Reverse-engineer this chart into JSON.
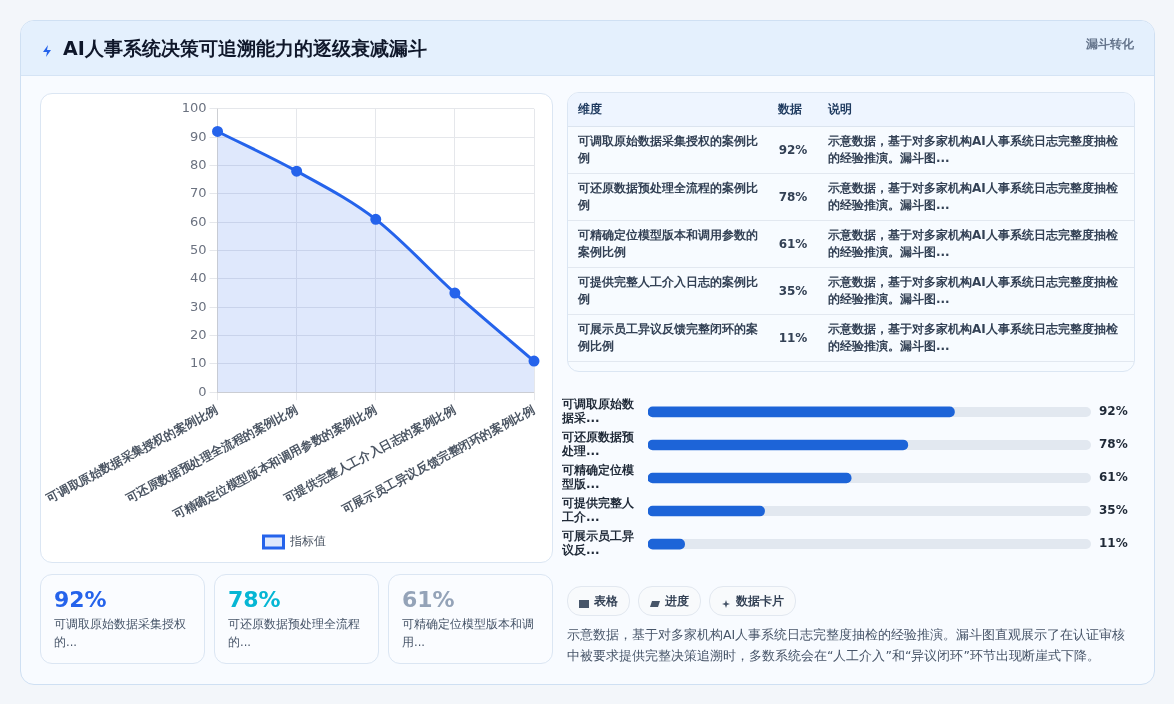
{
  "chart_data": [
    {
      "type": "area",
      "title": "AI人事系统决策可追溯能力的逐级衰减漏斗",
      "categories": [
        "可调取原始数据采集授权的案例比例",
        "可还原数据预处理全流程的案例比例",
        "可精确定位模型版本和调用参数的案例比例",
        "可提供完整人工介入日志的案例比例",
        "可展示员工异议反馈完整闭环的案例比例"
      ],
      "series": [
        {
          "name": "指标值",
          "color": "#2563eb",
          "values": [
            92,
            78,
            61,
            35,
            11
          ]
        }
      ],
      "ylim": [
        0,
        100
      ],
      "yticks": [
        0,
        10,
        20,
        30,
        40,
        50,
        60,
        70,
        80,
        90,
        100
      ],
      "grid": true,
      "legend": "bottom",
      "marker": "circle"
    },
    {
      "type": "other",
      "categories": [
        "可调取原始数据采集授权的案例比例",
        "可还原数据预处理全流程的案例比例",
        "可精确定位模型版本和调用参数的案例比例",
        "可提供完整人工介入日志的案例比例",
        "可展示员工异议反馈完整闭环的案例比例"
      ],
      "value_labels": [
        "92%",
        "78%",
        "61%",
        "35%",
        "11%"
      ],
      "annotations": [
        "维度",
        "数据",
        "说明",
        "示意数据，基于对多家机构AI人事系统日志完整度抽检的经验推演。漏斗图...",
        "示意数据，基于对多家机构AI人事系统日志完整度抽检的经验推演。漏斗图...",
        "示意数据，基于对多家机构AI人事系统日志完整度抽检的经验推演。漏斗图...",
        "示意数据，基于对多家机构AI人事系统日志完整度抽检的经验推演。漏斗图...",
        "示意数据，基于对多家机构AI人事系统日志完整度抽检的经验推演。漏斗图..."
      ]
    },
    {
      "type": "bar",
      "orientation": "horizontal",
      "categories": [
        "可调取原始数据采...",
        "可还原数据预处理...",
        "可精确定位模型版...",
        "可提供完整人工介...",
        "可展示员工异议反..."
      ],
      "values": [
        92,
        78,
        61,
        35,
        11
      ],
      "color": "#1d64d8",
      "xlim": [
        0,
        133
      ],
      "value_labels": [
        "92%",
        "78%",
        "61%",
        "35%",
        "11%"
      ],
      "tick_labels": "y",
      "annotations": [
        "示意数据，基于对多家机构AI人事系统日志完整度抽检的经验推演。漏斗图直观展示了在认证审核中被要求提供完整决策追溯时，多数系统会在“人工介入”和“异议闭环”环节出现断崖式下降。"
      ]
    },
    {
      "type": "other",
      "categories": [
        "可调取原始数据采集授权的...",
        "可还原数据预处理全流程的...",
        "可精确定位模型版本和调用..."
      ],
      "value_labels": [
        "92%",
        "78%",
        "61%"
      ]
    },
    {
      "type": "other",
      "annotations": [
        "表格",
        "进度",
        "数据卡片"
      ]
    },
    {
      "type": "other",
      "annotations": [
        "漏斗转化"
      ]
    }
  ]
}
